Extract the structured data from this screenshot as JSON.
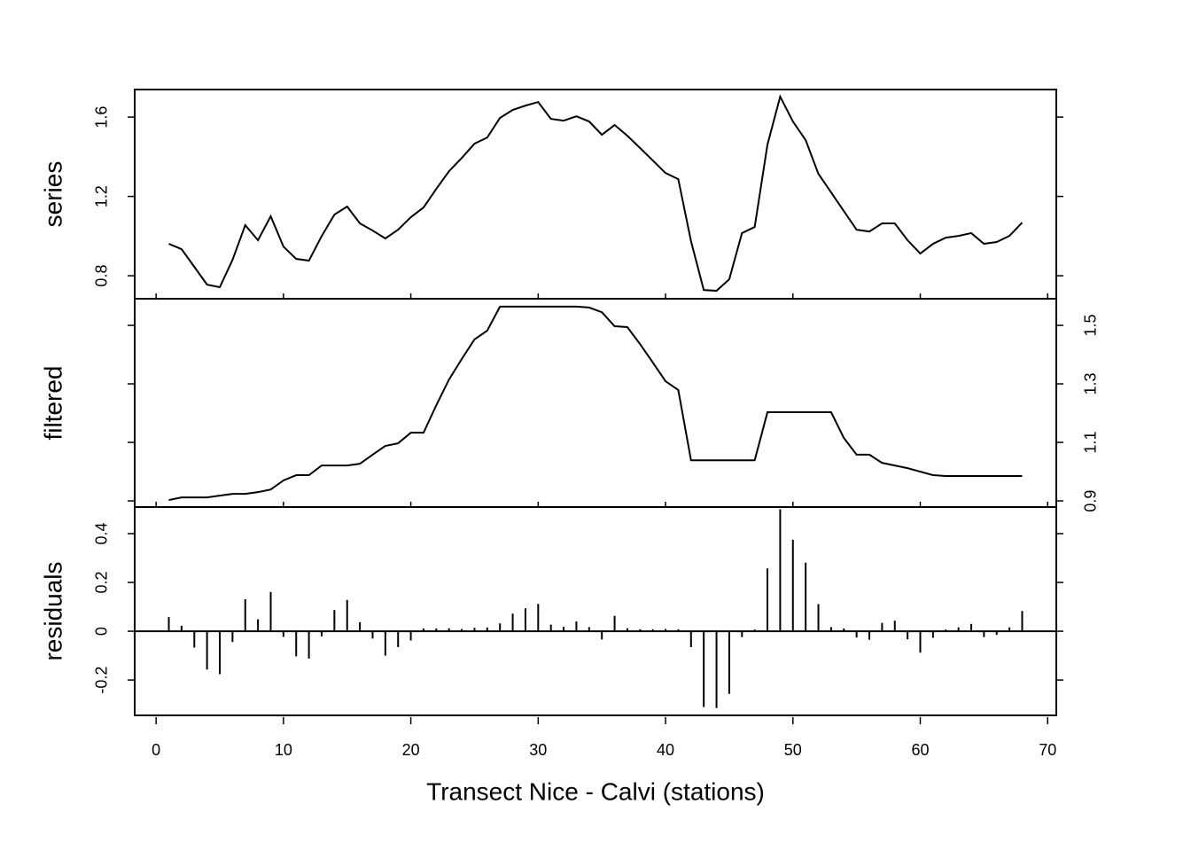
{
  "chart_data": [
    {
      "type": "line",
      "ylabel": "series",
      "color": "#000000",
      "axis_side": "left",
      "x": [
        1,
        2,
        3,
        4,
        5,
        6,
        7,
        8,
        9,
        10,
        11,
        12,
        13,
        14,
        15,
        16,
        17,
        18,
        19,
        20,
        21,
        22,
        23,
        24,
        25,
        26,
        27,
        28,
        29,
        30,
        31,
        32,
        33,
        34,
        35,
        36,
        37,
        38,
        39,
        40,
        41,
        42,
        43,
        44,
        45,
        46,
        47,
        48,
        49,
        50,
        51,
        52,
        53,
        54,
        55,
        56,
        57,
        58,
        59,
        60,
        61,
        62,
        63,
        64,
        65,
        66,
        67,
        68
      ],
      "values": [
        0.961,
        0.934,
        0.845,
        0.755,
        0.742,
        0.88,
        1.055,
        0.979,
        1.1,
        0.947,
        0.885,
        0.876,
        1.0,
        1.108,
        1.149,
        1.064,
        1.028,
        0.988,
        1.032,
        1.095,
        1.144,
        1.238,
        1.327,
        1.394,
        1.466,
        1.497,
        1.596,
        1.636,
        1.658,
        1.676,
        1.591,
        1.582,
        1.604,
        1.578,
        1.511,
        1.56,
        1.506,
        1.444,
        1.381,
        1.318,
        1.287,
        0.974,
        0.728,
        0.724,
        0.782,
        1.015,
        1.046,
        1.461,
        1.703,
        1.578,
        1.484,
        1.314,
        1.22,
        1.126,
        1.032,
        1.023,
        1.064,
        1.064,
        0.979,
        0.912,
        0.961,
        0.992,
        1.001,
        1.015,
        0.961,
        0.97,
        1.001,
        1.068
      ],
      "xlim": [
        -1.68,
        70.68
      ],
      "ylim": [
        0.684,
        1.739
      ],
      "yticks": [
        0.8,
        1.2,
        1.6
      ]
    },
    {
      "type": "line",
      "ylabel": "filtered",
      "color": "#000000",
      "axis_side": "right",
      "x": [
        1,
        2,
        3,
        4,
        5,
        6,
        7,
        8,
        9,
        10,
        11,
        12,
        13,
        14,
        15,
        16,
        17,
        18,
        19,
        20,
        21,
        22,
        23,
        24,
        25,
        26,
        27,
        28,
        29,
        30,
        31,
        32,
        33,
        34,
        35,
        36,
        37,
        38,
        39,
        40,
        41,
        42,
        43,
        44,
        45,
        46,
        47,
        48,
        49,
        50,
        51,
        52,
        53,
        54,
        55,
        56,
        57,
        58,
        59,
        60,
        61,
        62,
        63,
        64,
        65,
        66,
        67,
        68
      ],
      "values": [
        0.903,
        0.912,
        0.912,
        0.912,
        0.918,
        0.924,
        0.924,
        0.93,
        0.939,
        0.97,
        0.988,
        0.988,
        1.021,
        1.021,
        1.021,
        1.027,
        1.058,
        1.088,
        1.097,
        1.133,
        1.133,
        1.227,
        1.315,
        1.385,
        1.452,
        1.482,
        1.564,
        1.564,
        1.564,
        1.564,
        1.564,
        1.564,
        1.564,
        1.561,
        1.545,
        1.497,
        1.494,
        1.436,
        1.373,
        1.309,
        1.279,
        1.039,
        1.039,
        1.039,
        1.039,
        1.039,
        1.039,
        1.203,
        1.203,
        1.203,
        1.203,
        1.203,
        1.203,
        1.115,
        1.058,
        1.058,
        1.03,
        1.021,
        1.012,
        1.0,
        0.988,
        0.985,
        0.985,
        0.985,
        0.985,
        0.985,
        0.985,
        0.985
      ],
      "xlim": [
        -1.68,
        70.68
      ],
      "ylim": [
        0.879,
        1.591
      ],
      "yticks": [
        0.9,
        1.1,
        1.3,
        1.5
      ]
    },
    {
      "type": "stem",
      "ylabel": "residuals",
      "color": "#000000",
      "axis_side": "left",
      "xlabel": "Transect Nice - Calvi (stations)",
      "x": [
        1,
        2,
        3,
        4,
        5,
        6,
        7,
        8,
        9,
        10,
        11,
        12,
        13,
        14,
        15,
        16,
        17,
        18,
        19,
        20,
        21,
        22,
        23,
        24,
        25,
        26,
        27,
        28,
        29,
        30,
        31,
        32,
        33,
        34,
        35,
        36,
        37,
        38,
        39,
        40,
        41,
        42,
        43,
        44,
        45,
        46,
        47,
        48,
        49,
        50,
        51,
        52,
        53,
        54,
        55,
        56,
        57,
        58,
        59,
        60,
        61,
        62,
        63,
        64,
        65,
        66,
        67,
        68
      ],
      "values": [
        0.058,
        0.022,
        -0.067,
        -0.157,
        -0.176,
        -0.044,
        0.131,
        0.049,
        0.161,
        -0.023,
        -0.103,
        -0.112,
        -0.021,
        0.087,
        0.128,
        0.037,
        -0.03,
        -0.1,
        -0.065,
        -0.038,
        0.011,
        0.011,
        0.012,
        0.009,
        0.014,
        0.015,
        0.032,
        0.072,
        0.094,
        0.112,
        0.027,
        0.018,
        0.04,
        0.017,
        -0.034,
        0.063,
        0.012,
        0.008,
        0.008,
        0.009,
        0.008,
        -0.065,
        -0.311,
        -0.315,
        -0.257,
        -0.024,
        0.007,
        0.258,
        0.5,
        0.375,
        0.281,
        0.111,
        0.017,
        0.011,
        -0.026,
        -0.035,
        0.034,
        0.043,
        -0.033,
        -0.088,
        -0.027,
        0.007,
        0.016,
        0.03,
        -0.024,
        -0.015,
        0.016,
        0.083
      ],
      "xlim": [
        -1.68,
        70.68
      ],
      "ylim": [
        -0.345,
        0.509
      ],
      "yticks": [
        -0.2,
        0.0,
        0.2,
        0.4
      ],
      "xticks": [
        0,
        10,
        20,
        30,
        40,
        50,
        60,
        70
      ]
    }
  ]
}
